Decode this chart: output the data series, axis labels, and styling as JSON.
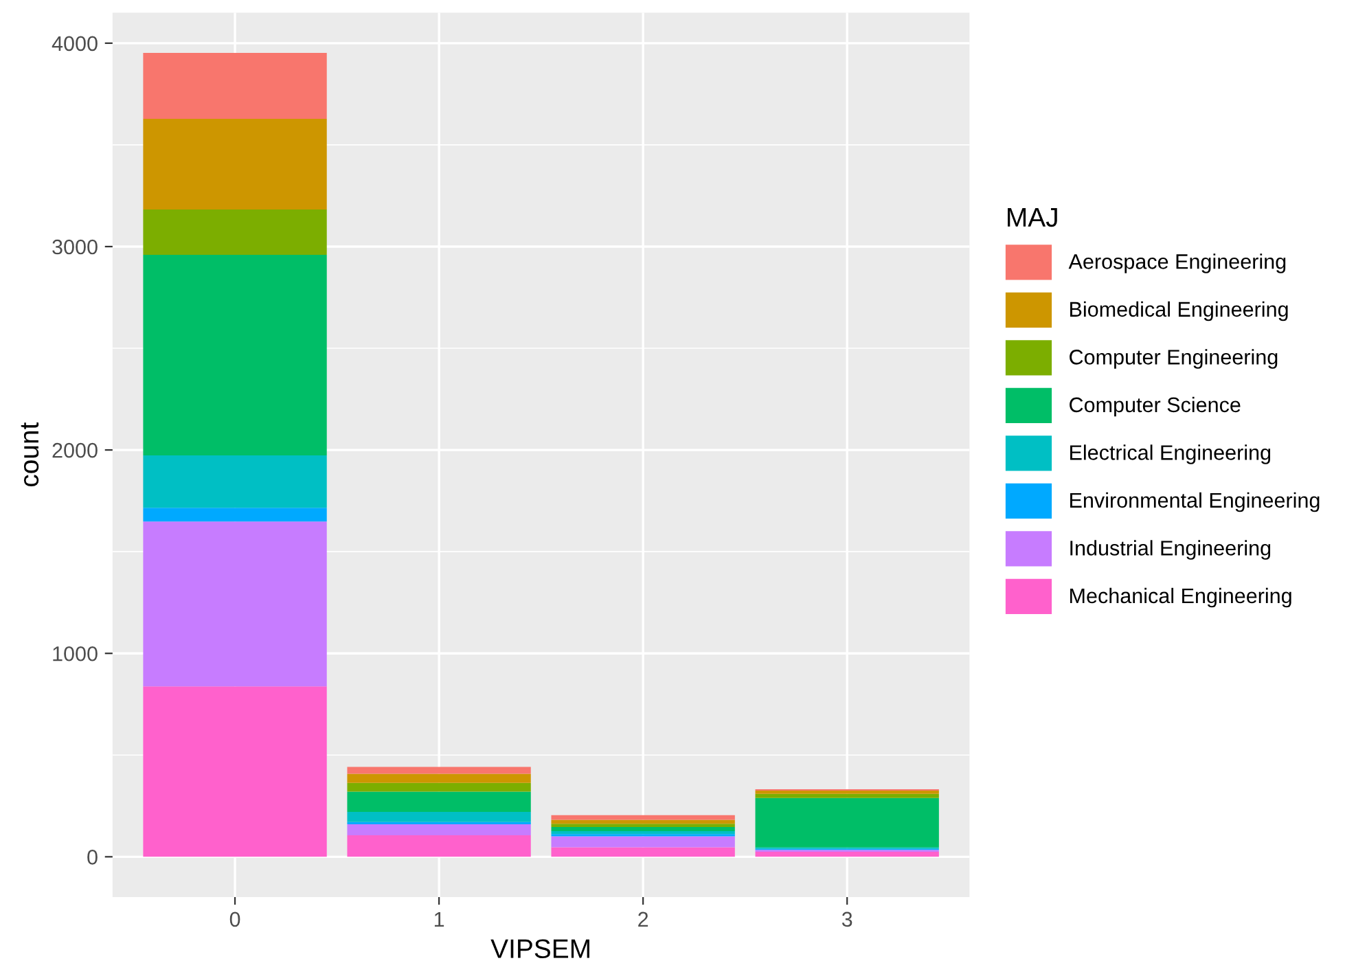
{
  "chart_data": {
    "type": "bar",
    "stacked": true,
    "xlabel": "VIPSEM",
    "ylabel": "count",
    "legend_title": "MAJ",
    "categories": [
      "0",
      "1",
      "2",
      "3"
    ],
    "series": [
      {
        "name": "Mechanical Engineering",
        "color": "#ff61cc",
        "values": [
          838,
          106,
          47,
          25
        ]
      },
      {
        "name": "Industrial Engineering",
        "color": "#c77cff",
        "values": [
          810,
          54,
          54,
          9
        ]
      },
      {
        "name": "Environmental Engineering",
        "color": "#00a9ff",
        "values": [
          68,
          11,
          11,
          5
        ]
      },
      {
        "name": "Electrical Engineering",
        "color": "#00bfc4",
        "values": [
          257,
          50,
          14,
          7
        ]
      },
      {
        "name": "Computer Science",
        "color": "#00be67",
        "values": [
          986,
          99,
          20,
          243
        ]
      },
      {
        "name": "Computer Engineering",
        "color": "#7cae00",
        "values": [
          223,
          43,
          16,
          20
        ]
      },
      {
        "name": "Biomedical Engineering",
        "color": "#cd9600",
        "values": [
          446,
          45,
          20,
          16
        ]
      },
      {
        "name": "Aerospace Engineering",
        "color": "#f8766d",
        "values": [
          324,
          34,
          23,
          7
        ]
      }
    ],
    "ylim": [
      -198,
      4150
    ],
    "yticks": [
      0,
      1000,
      2000,
      3000,
      4000
    ],
    "grid": true,
    "legend": "right"
  }
}
